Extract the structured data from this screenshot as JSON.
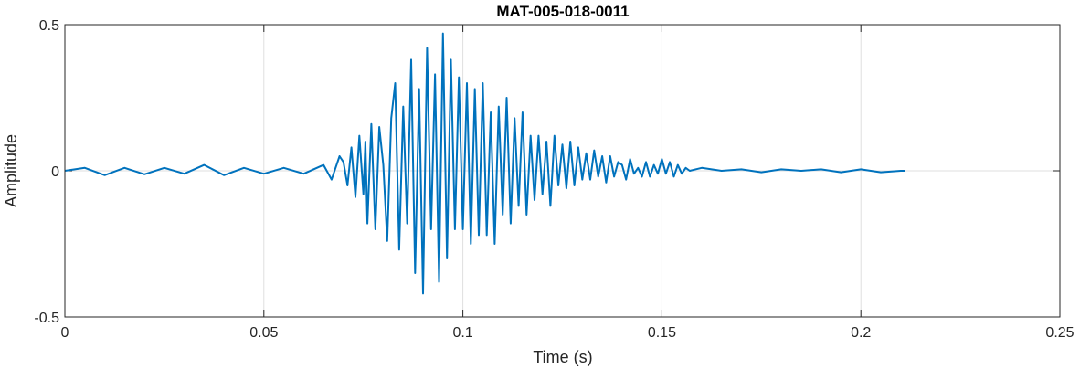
{
  "chart_data": {
    "type": "line",
    "title": "MAT-005-018-0011",
    "xlabel": "Time (s)",
    "ylabel": "Amplitude",
    "xlim": [
      0,
      0.25
    ],
    "ylim": [
      -0.5,
      0.5
    ],
    "xticks": [
      0,
      0.05,
      0.1,
      0.15,
      0.2,
      0.25
    ],
    "xtick_labels": [
      "0",
      "0.05",
      "0.1",
      "0.15",
      "0.2",
      "0.25"
    ],
    "yticks": [
      -0.5,
      0,
      0.5
    ],
    "ytick_labels": [
      "-0.5",
      "0",
      "0.5"
    ],
    "grid": true,
    "line_color": "#0072BD",
    "series": [
      {
        "x": [
          0,
          0.005,
          0.01,
          0.015,
          0.02,
          0.025,
          0.03,
          0.035,
          0.04,
          0.045,
          0.05,
          0.055,
          0.06,
          0.065,
          0.067,
          0.069,
          0.07,
          0.071,
          0.072,
          0.073,
          0.074,
          0.075,
          0.0755,
          0.076,
          0.077,
          0.078,
          0.079,
          0.08,
          0.081,
          0.082,
          0.083,
          0.084,
          0.085,
          0.086,
          0.087,
          0.088,
          0.089,
          0.09,
          0.091,
          0.092,
          0.093,
          0.094,
          0.095,
          0.096,
          0.097,
          0.098,
          0.099,
          0.1,
          0.101,
          0.102,
          0.103,
          0.104,
          0.105,
          0.106,
          0.107,
          0.108,
          0.109,
          0.11,
          0.111,
          0.112,
          0.113,
          0.114,
          0.115,
          0.116,
          0.117,
          0.118,
          0.119,
          0.12,
          0.121,
          0.122,
          0.123,
          0.124,
          0.125,
          0.126,
          0.127,
          0.128,
          0.129,
          0.13,
          0.131,
          0.132,
          0.133,
          0.134,
          0.135,
          0.136,
          0.137,
          0.138,
          0.139,
          0.14,
          0.141,
          0.142,
          0.143,
          0.144,
          0.145,
          0.146,
          0.147,
          0.148,
          0.149,
          0.15,
          0.151,
          0.152,
          0.153,
          0.154,
          0.155,
          0.156,
          0.157,
          0.16,
          0.165,
          0.17,
          0.175,
          0.18,
          0.185,
          0.19,
          0.195,
          0.2,
          0.205,
          0.21,
          0.211
        ],
        "y": [
          0,
          0.01,
          -0.015,
          0.01,
          -0.012,
          0.01,
          -0.01,
          0.02,
          -0.015,
          0.01,
          -0.01,
          0.01,
          -0.01,
          0.02,
          -0.03,
          0.05,
          0.03,
          -0.05,
          0.08,
          -0.09,
          0.12,
          -0.08,
          0.1,
          -0.18,
          0.16,
          -0.2,
          0.15,
          0.02,
          -0.24,
          0.18,
          0.3,
          -0.27,
          0.22,
          -0.18,
          0.38,
          -0.35,
          0.28,
          -0.42,
          0.42,
          -0.2,
          0.33,
          -0.38,
          0.47,
          -0.3,
          0.38,
          -0.2,
          0.32,
          -0.2,
          0.3,
          -0.25,
          0.28,
          -0.22,
          0.3,
          -0.22,
          0.2,
          -0.25,
          0.22,
          -0.15,
          0.25,
          -0.18,
          0.18,
          -0.12,
          0.2,
          -0.15,
          0.12,
          -0.1,
          0.12,
          -0.08,
          0.1,
          -0.12,
          0.12,
          -0.05,
          0.09,
          -0.06,
          0.1,
          -0.05,
          0.08,
          -0.03,
          0.06,
          -0.03,
          0.07,
          -0.02,
          0.05,
          -0.04,
          0.05,
          -0.02,
          0.03,
          0.02,
          -0.03,
          0.04,
          -0.01,
          0.01,
          -0.02,
          0.03,
          -0.02,
          0.02,
          -0.01,
          0.04,
          -0.01,
          0.03,
          -0.02,
          0.02,
          -0.01,
          0.01,
          0.0,
          0.01,
          0.0,
          0.005,
          -0.005,
          0.005,
          0.0,
          0.005,
          -0.005,
          0.005,
          -0.005,
          0.0,
          0.0
        ]
      }
    ]
  }
}
